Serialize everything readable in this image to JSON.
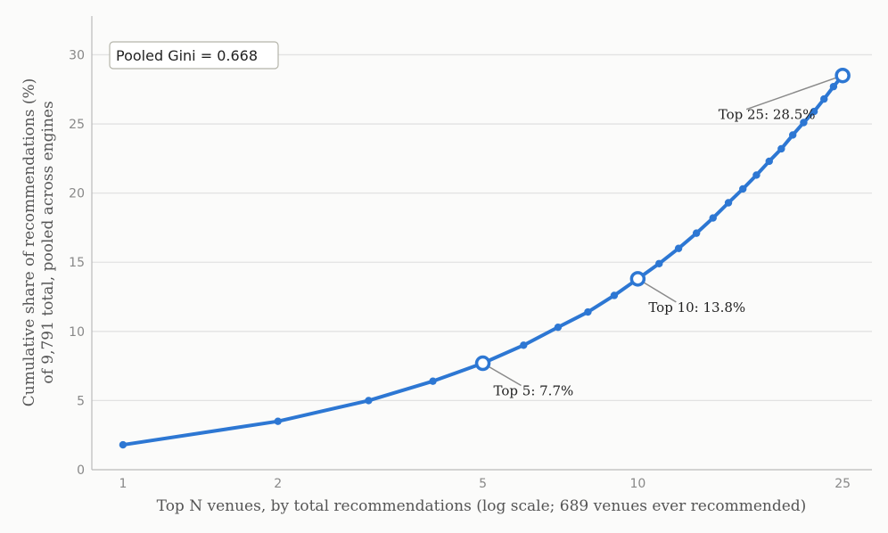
{
  "chart_data": {
    "type": "line",
    "xscale": "log",
    "xlabel": "Top N venues, by total recommendations (log scale; 689 venues ever recommended)",
    "ylabel_line1": "Cumulative share of recommendations (%)",
    "ylabel_line2": "of 9,791 total, pooled across engines",
    "xlim": [
      0.87,
      28.5
    ],
    "ylim": [
      0,
      32.8
    ],
    "xticks": [
      1,
      2,
      5,
      10,
      25
    ],
    "xtick_labels": [
      "1",
      "2",
      "5",
      "10",
      "25"
    ],
    "yticks": [
      0,
      5,
      10,
      15,
      20,
      25,
      30
    ],
    "ytick_labels": [
      "0",
      "5",
      "10",
      "15",
      "20",
      "25",
      "30"
    ],
    "grid": "horizontal",
    "color": "#2d77d3",
    "series": [
      {
        "x": [
          1,
          2,
          3,
          4,
          5,
          6,
          7,
          8,
          9,
          10,
          11,
          12,
          13,
          14,
          15,
          16,
          17,
          18,
          19,
          20,
          21,
          22,
          23,
          24,
          25
        ],
        "values": [
          1.8,
          3.5,
          5.0,
          6.4,
          7.7,
          9.0,
          10.3,
          11.4,
          12.6,
          13.8,
          14.9,
          16.0,
          17.1,
          18.2,
          19.3,
          20.3,
          21.3,
          22.3,
          23.2,
          24.2,
          25.1,
          25.9,
          26.8,
          27.7,
          28.5
        ]
      }
    ],
    "highlights": [
      {
        "x": 5,
        "y": 7.7,
        "label": "Top 5: 7.7%"
      },
      {
        "x": 10,
        "y": 13.8,
        "label": "Top 10: 13.8%"
      },
      {
        "x": 25,
        "y": 28.5,
        "label": "Top 25: 28.5%"
      }
    ],
    "annotation_box": "Pooled Gini = 0.668"
  }
}
